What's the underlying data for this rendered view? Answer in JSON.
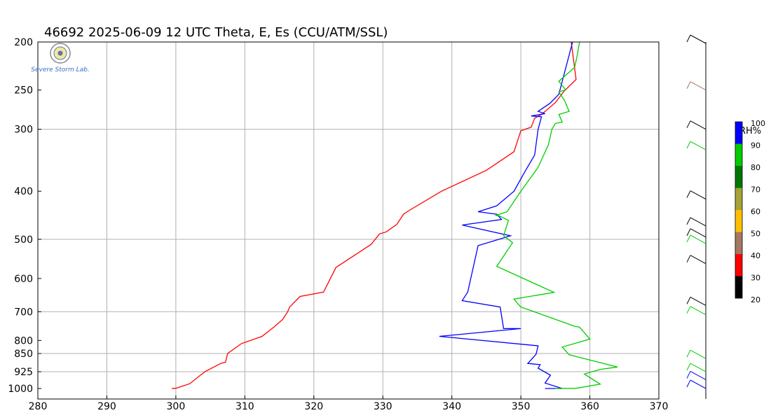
{
  "title": "46692  2025-06-09 12 UTC  Theta, E, Es (CCU/ATM/SSL)",
  "logo": {
    "text": "Severe Storm Lab."
  },
  "chart_data": {
    "type": "line",
    "xlim": [
      280,
      370
    ],
    "xticks": [
      280,
      290,
      300,
      310,
      320,
      330,
      340,
      350,
      360,
      370
    ],
    "y_axis": "pressure (log scale)",
    "ylim": [
      1000,
      200
    ],
    "yticks": [
      200,
      250,
      300,
      400,
      500,
      600,
      700,
      800,
      850,
      925,
      1000
    ],
    "grid_x": [
      290,
      300,
      310,
      320,
      330,
      340,
      350,
      360
    ],
    "grid_y": [
      300,
      500,
      700,
      850,
      925
    ],
    "series": [
      {
        "color": "#ff0000",
        "points": [
          [
            299.4,
            1000
          ],
          [
            300,
            999
          ],
          [
            302,
            978
          ],
          [
            304.2,
            925
          ],
          [
            306.5,
            890
          ],
          [
            307.2,
            885
          ],
          [
            307.5,
            850
          ],
          [
            309.5,
            812
          ],
          [
            312.5,
            785
          ],
          [
            314.3,
            750
          ],
          [
            315.5,
            725
          ],
          [
            316.2,
            700
          ],
          [
            316.5,
            685
          ],
          [
            318,
            652
          ],
          [
            321.4,
            639
          ],
          [
            323.2,
            570
          ],
          [
            328.3,
            512
          ],
          [
            329.5,
            488
          ],
          [
            330.5,
            483
          ],
          [
            332,
            467
          ],
          [
            333,
            445
          ],
          [
            333.5,
            440
          ],
          [
            338.5,
            400
          ],
          [
            345,
            363
          ],
          [
            349,
            333
          ],
          [
            350,
            302
          ],
          [
            351.5,
            297
          ],
          [
            352,
            285
          ],
          [
            353,
            280
          ],
          [
            355,
            265
          ],
          [
            356.3,
            251
          ],
          [
            358,
            238
          ],
          [
            357.3,
            200
          ]
        ]
      },
      {
        "color": "#0000ff",
        "points": [
          [
            353.5,
            1000
          ],
          [
            356,
            1000
          ],
          [
            355.5,
            995
          ],
          [
            353.5,
            975
          ],
          [
            354.3,
            940
          ],
          [
            352.5,
            910
          ],
          [
            352.8,
            895
          ],
          [
            351,
            890
          ],
          [
            352.2,
            853
          ],
          [
            352.5,
            820
          ],
          [
            338.2,
            785
          ],
          [
            350,
            757
          ],
          [
            347.5,
            757
          ],
          [
            347,
            685
          ],
          [
            341.5,
            665
          ],
          [
            342.3,
            639
          ],
          [
            343.8,
            515
          ],
          [
            348.5,
            492
          ],
          [
            341.5,
            468
          ],
          [
            347.2,
            456
          ],
          [
            346.5,
            445
          ],
          [
            343.8,
            440
          ],
          [
            346.5,
            428
          ],
          [
            349,
            400
          ],
          [
            350.5,
            367
          ],
          [
            352,
            338
          ],
          [
            352.5,
            300
          ],
          [
            353,
            283
          ],
          [
            351.5,
            282
          ],
          [
            353.5,
            279
          ],
          [
            352.5,
            276
          ],
          [
            354.2,
            266
          ],
          [
            355.5,
            255
          ],
          [
            357.5,
            200
          ]
        ]
      },
      {
        "color": "#00cc00",
        "points": [
          [
            355,
            1000
          ],
          [
            358,
            999
          ],
          [
            361.5,
            980
          ],
          [
            359.2,
            935
          ],
          [
            361.5,
            915
          ],
          [
            364,
            905
          ],
          [
            357,
            855
          ],
          [
            356,
            825
          ],
          [
            360,
            795
          ],
          [
            358.5,
            752
          ],
          [
            357.8,
            749
          ],
          [
            350,
            685
          ],
          [
            349.3,
            668
          ],
          [
            349,
            660
          ],
          [
            354.8,
            640
          ],
          [
            346.5,
            567
          ],
          [
            348.8,
            508
          ],
          [
            347.5,
            492
          ],
          [
            348.2,
            458
          ],
          [
            346.8,
            448
          ],
          [
            346.3,
            448
          ],
          [
            348,
            440
          ],
          [
            350,
            400
          ],
          [
            352.5,
            358
          ],
          [
            354,
            322
          ],
          [
            354.5,
            300
          ],
          [
            355,
            292
          ],
          [
            356,
            290
          ],
          [
            355.5,
            280
          ],
          [
            357,
            276
          ],
          [
            356.3,
            262
          ],
          [
            355.5,
            252
          ],
          [
            356.5,
            250
          ],
          [
            355.5,
            240
          ],
          [
            357.8,
            225
          ],
          [
            358.2,
            212
          ],
          [
            358.5,
            200
          ]
        ]
      }
    ]
  },
  "rh_legend": {
    "title": "RH%",
    "labels": [
      "100",
      "90",
      "80",
      "70",
      "60",
      "50",
      "40",
      "30",
      "20"
    ],
    "colors": [
      "#0000ff",
      "#00cc00",
      "#007700",
      "#a6a338",
      "#ffbf00",
      "#a57862",
      "#ff0000",
      "#000000"
    ]
  },
  "wind_barbs": [
    {
      "p": 200,
      "color": "#000000"
    },
    {
      "p": 250,
      "color": "#a57862"
    },
    {
      "p": 300,
      "color": "#000000"
    },
    {
      "p": 330,
      "color": "#00cc00"
    },
    {
      "p": 415,
      "color": "#000000"
    },
    {
      "p": 470,
      "color": "#000000"
    },
    {
      "p": 495,
      "color": "#000000"
    },
    {
      "p": 510,
      "color": "#00cc00"
    },
    {
      "p": 560,
      "color": "#000000"
    },
    {
      "p": 680,
      "color": "#000000"
    },
    {
      "p": 710,
      "color": "#00cc00"
    },
    {
      "p": 870,
      "color": "#00cc00"
    },
    {
      "p": 925,
      "color": "#00cc00"
    },
    {
      "p": 960,
      "color": "#0000ff"
    },
    {
      "p": 1000,
      "color": "#0000ff"
    }
  ]
}
